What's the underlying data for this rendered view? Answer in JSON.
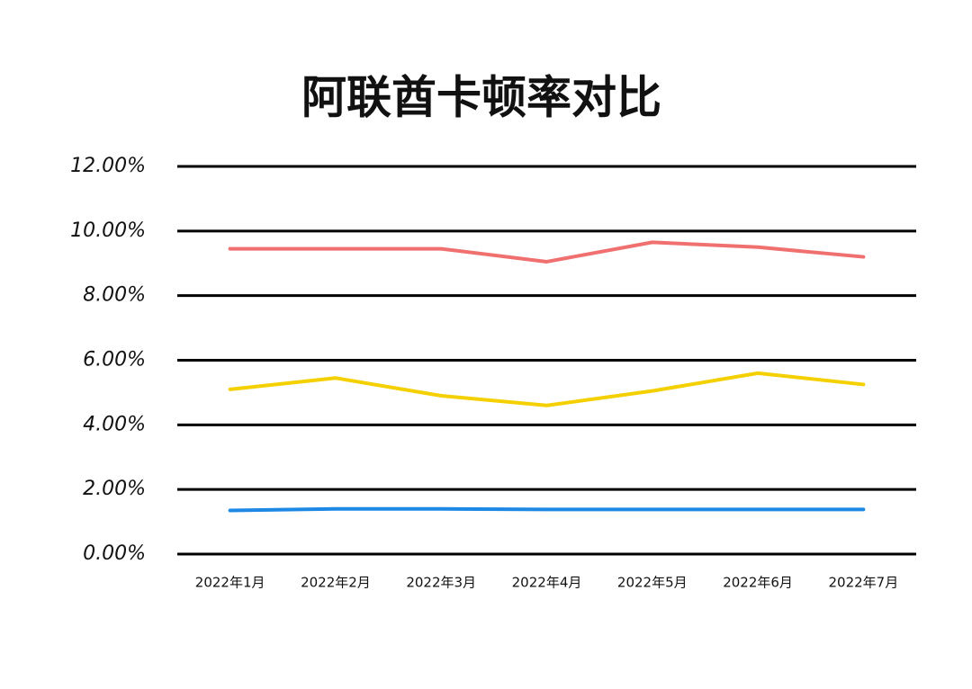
{
  "chart_data": {
    "type": "line",
    "title": "阿联酋卡顿率对比",
    "categories": [
      "2022年1月",
      "2022年2月",
      "2022年3月",
      "2022年4月",
      "2022年5月",
      "2022年6月",
      "2022年7月"
    ],
    "series": [
      {
        "color": "#f07070",
        "values": [
          9.45,
          9.45,
          9.45,
          9.05,
          9.65,
          9.5,
          9.2
        ]
      },
      {
        "color": "#f5d000",
        "values": [
          5.1,
          5.45,
          4.9,
          4.6,
          5.05,
          5.6,
          5.25
        ]
      },
      {
        "color": "#1e88e5",
        "values": [
          1.35,
          1.4,
          1.4,
          1.38,
          1.38,
          1.38,
          1.38
        ]
      }
    ],
    "ylim": [
      0,
      12
    ],
    "yticks": [
      {
        "value": 0,
        "label": "0.00%"
      },
      {
        "value": 2,
        "label": "2.00%"
      },
      {
        "value": 4,
        "label": "4.00%"
      },
      {
        "value": 6,
        "label": "6.00%"
      },
      {
        "value": 8,
        "label": "8.00%"
      },
      {
        "value": 10,
        "label": "10.00%"
      },
      {
        "value": 12,
        "label": "12.00%"
      }
    ],
    "grid": true
  }
}
